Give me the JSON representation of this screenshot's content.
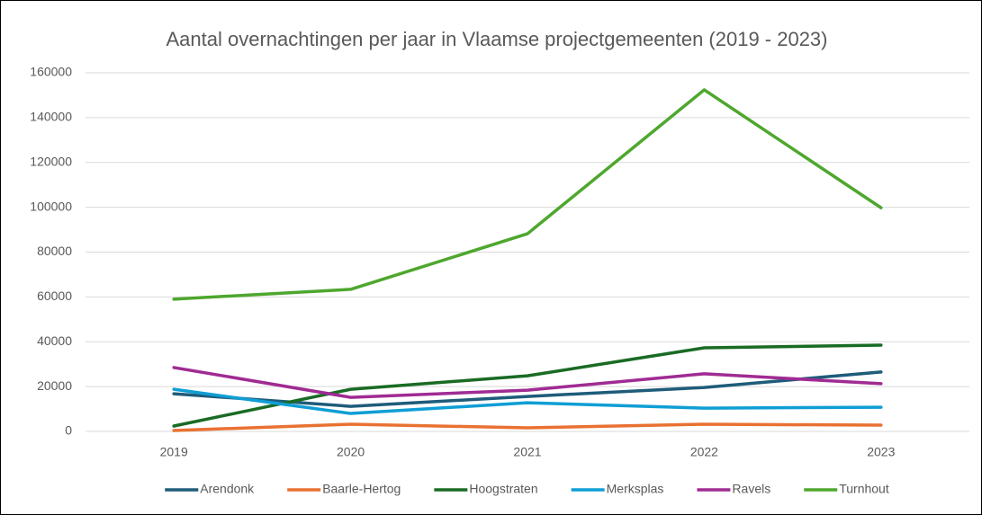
{
  "chart_data": {
    "type": "line",
    "title": "Aantal overnachtingen per jaar in Vlaamse projectgemeenten (2019 - 2023)",
    "categories": [
      "2019",
      "2020",
      "2021",
      "2022",
      "2023"
    ],
    "series": [
      {
        "name": "Arendonk",
        "color": "#1e5c7a",
        "values": [
          16800,
          11200,
          15600,
          19600,
          26500
        ]
      },
      {
        "name": "Baarle-Hertog",
        "color": "#e97132",
        "values": [
          400,
          3200,
          1600,
          3200,
          2800
        ]
      },
      {
        "name": "Hoogstraten",
        "color": "#196b24",
        "values": [
          2400,
          18800,
          24800,
          37300,
          38500
        ]
      },
      {
        "name": "Merksplas",
        "color": "#0f9ed5",
        "values": [
          18800,
          8000,
          12800,
          10400,
          10800
        ]
      },
      {
        "name": "Ravels",
        "color": "#a02b93",
        "values": [
          28500,
          15200,
          18400,
          25700,
          21300
        ]
      },
      {
        "name": "Turnhout",
        "color": "#4ea72e",
        "values": [
          59000,
          63400,
          88200,
          152400,
          99800
        ]
      }
    ],
    "ylim": [
      0,
      160000
    ],
    "yticks": [
      0,
      20000,
      40000,
      60000,
      80000,
      100000,
      120000,
      140000,
      160000
    ],
    "grid": true,
    "legend": "bottom"
  }
}
